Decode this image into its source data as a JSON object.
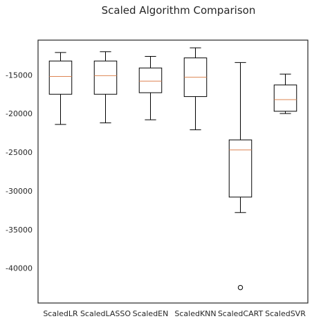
{
  "chart_data": {
    "type": "boxplot",
    "title": "Scaled Algorithm Comparison",
    "xlabel": "",
    "ylabel": "",
    "ylim": [
      -44500,
      -10500
    ],
    "yticks": [
      -15000,
      -20000,
      -25000,
      -30000,
      -35000,
      -40000
    ],
    "grid": false,
    "categories": [
      "ScaledLR",
      "ScaledLASSO",
      "ScaledEN",
      "ScaledKNN",
      "ScaledCART",
      "ScaledSVR"
    ],
    "boxes": [
      {
        "whislo": -21400,
        "q1": -17500,
        "med": -15200,
        "q3": -13200,
        "whishi": -12100,
        "fliers": []
      },
      {
        "whislo": -21200,
        "q1": -17500,
        "med": -15100,
        "q3": -13200,
        "whishi": -12000,
        "fliers": []
      },
      {
        "whislo": -20800,
        "q1": -17300,
        "med": -15800,
        "q3": -14100,
        "whishi": -12600,
        "fliers": []
      },
      {
        "whislo": -22100,
        "q1": -17800,
        "med": -15300,
        "q3": -12800,
        "whishi": -11500,
        "fliers": []
      },
      {
        "whislo": -32800,
        "q1": -30800,
        "med": -24700,
        "q3": -23400,
        "whishi": -13400,
        "fliers": [
          -42500
        ]
      },
      {
        "whislo": -20000,
        "q1": -19700,
        "med": -18200,
        "q3": -16300,
        "whishi": -14900,
        "fliers": []
      }
    ],
    "colors": {
      "box": "#000000",
      "median": "#dd8452",
      "text": "#262626",
      "frame": "#262626"
    }
  }
}
